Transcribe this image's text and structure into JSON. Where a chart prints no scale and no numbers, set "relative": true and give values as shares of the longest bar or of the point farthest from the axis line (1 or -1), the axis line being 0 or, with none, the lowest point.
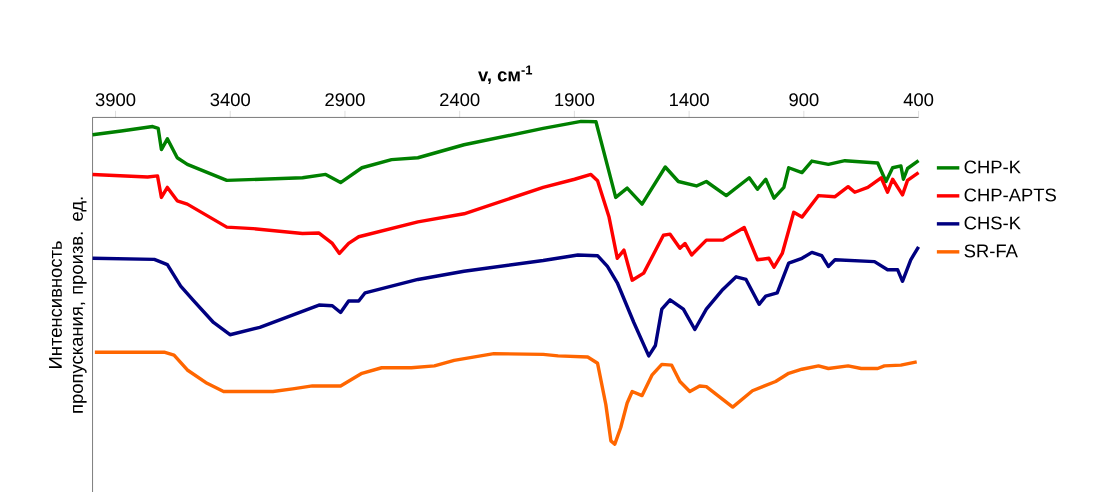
{
  "chart_data": {
    "type": "line",
    "relative": true,
    "xlabel": "v, см$^{-1}$",
    "ylabel": "Интенсивность пропускания, произв. ед.",
    "xlim": [
      4000,
      400
    ],
    "xticks": [
      3900,
      3400,
      2900,
      2400,
      1900,
      1400,
      900,
      400
    ],
    "legend": "right",
    "series": [
      {
        "name": "CHP-K",
        "color": "#008000",
        "x": [
          4000,
          3875,
          3738,
          3714,
          3700,
          3674,
          3631,
          3587,
          3415,
          3085,
          2984,
          2919,
          2826,
          2697,
          2582,
          2381,
          2036,
          1871,
          1806,
          1720,
          1670,
          1605,
          1504,
          1447,
          1368,
          1325,
          1238,
          1138,
          1102,
          1066,
          1030,
          987,
          966,
          908,
          865,
          793,
          721,
          578,
          542,
          513,
          477,
          466,
          448,
          400
        ],
        "values": [
          0.964,
          0.974,
          0.986,
          0.981,
          0.924,
          0.953,
          0.902,
          0.884,
          0.841,
          0.848,
          0.857,
          0.835,
          0.875,
          0.897,
          0.902,
          0.937,
          0.981,
          1.0,
          0.999,
          0.795,
          0.82,
          0.777,
          0.877,
          0.838,
          0.826,
          0.838,
          0.8,
          0.848,
          0.817,
          0.844,
          0.793,
          0.822,
          0.875,
          0.862,
          0.893,
          0.884,
          0.894,
          0.888,
          0.838,
          0.875,
          0.88,
          0.844,
          0.873,
          0.894
        ]
      },
      {
        "name": "CHP-APTS",
        "color": "#ff0000",
        "x": [
          4000,
          3760,
          3717,
          3700,
          3674,
          3631,
          3587,
          3415,
          3300,
          3085,
          3013,
          2955,
          2924,
          2884,
          2840,
          2582,
          2381,
          2036,
          1899,
          1828,
          1799,
          1749,
          1713,
          1684,
          1648,
          1598,
          1512,
          1483,
          1440,
          1418,
          1389,
          1325,
          1253,
          1160,
          1102,
          1052,
          1030,
          994,
          944,
          908,
          836,
          764,
          707,
          678,
          621,
          563,
          535,
          513,
          470,
          448,
          400
        ],
        "values": [
          0.857,
          0.85,
          0.853,
          0.795,
          0.822,
          0.786,
          0.777,
          0.715,
          0.711,
          0.698,
          0.699,
          0.671,
          0.644,
          0.671,
          0.689,
          0.729,
          0.751,
          0.822,
          0.844,
          0.857,
          0.84,
          0.742,
          0.631,
          0.653,
          0.572,
          0.591,
          0.693,
          0.696,
          0.658,
          0.671,
          0.64,
          0.68,
          0.68,
          0.714,
          0.627,
          0.631,
          0.607,
          0.644,
          0.755,
          0.742,
          0.8,
          0.797,
          0.824,
          0.809,
          0.822,
          0.848,
          0.809,
          0.844,
          0.802,
          0.841,
          0.862
        ]
      },
      {
        "name": "CHS-K",
        "color": "#000080",
        "x": [
          4000,
          3731,
          3674,
          3616,
          3559,
          3473,
          3401,
          3271,
          3013,
          2955,
          2919,
          2884,
          2840,
          2812,
          2582,
          2381,
          2036,
          1885,
          1799,
          1756,
          1713,
          1641,
          1576,
          1547,
          1519,
          1483,
          1425,
          1375,
          1325,
          1253,
          1195,
          1152,
          1095,
          1066,
          1016,
          966,
          908,
          865,
          822,
          793,
          764,
          592,
          535,
          491,
          470,
          434,
          400
        ],
        "values": [
          0.631,
          0.628,
          0.614,
          0.556,
          0.516,
          0.458,
          0.425,
          0.445,
          0.505,
          0.503,
          0.485,
          0.516,
          0.516,
          0.538,
          0.574,
          0.596,
          0.625,
          0.64,
          0.638,
          0.609,
          0.565,
          0.458,
          0.368,
          0.396,
          0.494,
          0.519,
          0.494,
          0.439,
          0.494,
          0.547,
          0.581,
          0.574,
          0.507,
          0.529,
          0.538,
          0.618,
          0.631,
          0.647,
          0.638,
          0.609,
          0.627,
          0.622,
          0.6,
          0.6,
          0.569,
          0.627,
          0.662
        ]
      },
      {
        "name": "SR-FA",
        "color": "#ff6600",
        "x": [
          3990,
          3688,
          3645,
          3587,
          3501,
          3429,
          3214,
          3128,
          3042,
          2919,
          2826,
          2740,
          2611,
          2510,
          2424,
          2309,
          2251,
          2036,
          1971,
          1842,
          1799,
          1763,
          1741,
          1724,
          1698,
          1670,
          1648,
          1605,
          1562,
          1519,
          1476,
          1440,
          1397,
          1354,
          1325,
          1210,
          1124,
          1023,
          966,
          908,
          836,
          793,
          707,
          650,
          578,
          549,
          477,
          408
        ],
        "values": [
          0.378,
          0.378,
          0.37,
          0.33,
          0.294,
          0.272,
          0.272,
          0.279,
          0.287,
          0.287,
          0.321,
          0.336,
          0.336,
          0.341,
          0.356,
          0.368,
          0.374,
          0.372,
          0.368,
          0.365,
          0.348,
          0.237,
          0.139,
          0.13,
          0.175,
          0.241,
          0.272,
          0.261,
          0.316,
          0.345,
          0.343,
          0.299,
          0.272,
          0.287,
          0.285,
          0.23,
          0.274,
          0.299,
          0.321,
          0.332,
          0.341,
          0.334,
          0.341,
          0.334,
          0.334,
          0.341,
          0.343,
          0.352
        ]
      }
    ]
  }
}
